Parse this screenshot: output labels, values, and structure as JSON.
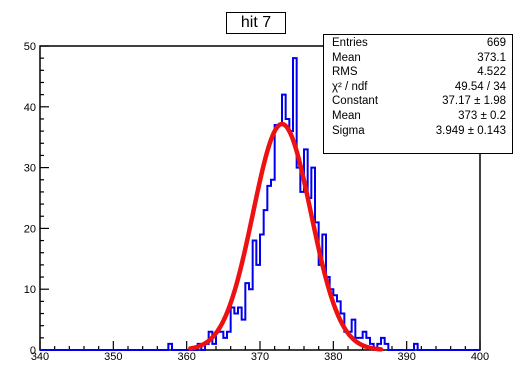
{
  "colors": {
    "histogram": "#0000ee",
    "fit": "#ee1111",
    "axis": "#000000"
  },
  "chart_data": {
    "type": "bar",
    "subtype": "histogram-with-gaussian-fit",
    "title": "hit 7",
    "xlabel": "",
    "ylabel": "",
    "xlim": [
      340,
      400
    ],
    "ylim": [
      0,
      50
    ],
    "x_ticks": [
      "340",
      "350",
      "360",
      "370",
      "380",
      "390",
      "400"
    ],
    "y_ticks": [
      "0",
      "10",
      "20",
      "30",
      "40",
      "50"
    ],
    "bin_width": 0.5,
    "bins": [
      [
        357.5,
        1
      ],
      [
        361.5,
        1
      ],
      [
        362.5,
        1
      ],
      [
        363,
        3
      ],
      [
        363.5,
        1
      ],
      [
        364,
        3
      ],
      [
        364.5,
        3
      ],
      [
        365,
        2
      ],
      [
        365.5,
        3
      ],
      [
        366,
        7
      ],
      [
        366.5,
        6
      ],
      [
        367,
        7
      ],
      [
        367.5,
        5
      ],
      [
        368,
        11
      ],
      [
        368.5,
        10
      ],
      [
        369,
        18
      ],
      [
        369.5,
        14
      ],
      [
        370,
        19
      ],
      [
        370.5,
        23
      ],
      [
        371,
        27
      ],
      [
        371.5,
        28
      ],
      [
        372,
        37
      ],
      [
        372.5,
        37
      ],
      [
        373,
        42
      ],
      [
        373.5,
        38
      ],
      [
        374,
        36
      ],
      [
        374.5,
        48
      ],
      [
        375,
        30
      ],
      [
        375.5,
        26
      ],
      [
        376,
        33
      ],
      [
        376.5,
        25
      ],
      [
        377,
        30
      ],
      [
        377.5,
        21
      ],
      [
        378,
        14
      ],
      [
        378.5,
        19
      ],
      [
        379,
        12
      ],
      [
        379.5,
        10
      ],
      [
        380,
        9
      ],
      [
        380.5,
        8
      ],
      [
        381,
        6
      ],
      [
        381.5,
        3
      ],
      [
        382,
        3
      ],
      [
        382.5,
        5
      ],
      [
        383,
        2
      ],
      [
        383.5,
        2
      ],
      [
        384,
        3
      ],
      [
        384.5,
        2
      ],
      [
        385,
        1
      ],
      [
        386,
        1
      ],
      [
        386.5,
        2
      ],
      [
        387,
        1
      ],
      [
        391,
        1
      ]
    ],
    "fit": {
      "constant": 37.17,
      "mean": 373,
      "sigma": 3.949
    },
    "stats": [
      {
        "label": "Entries",
        "value": "669"
      },
      {
        "label": "Mean",
        "value": "373.1"
      },
      {
        "label": "RMS",
        "value": "4.522"
      },
      {
        "label": "χ² / ndf",
        "value": "49.54 / 34"
      },
      {
        "label": "Constant",
        "value": "37.17 ±  1.98"
      },
      {
        "label": "Mean",
        "value": "373 ±  0.2"
      },
      {
        "label": "Sigma",
        "value": "3.949 ±  0.143"
      }
    ]
  }
}
